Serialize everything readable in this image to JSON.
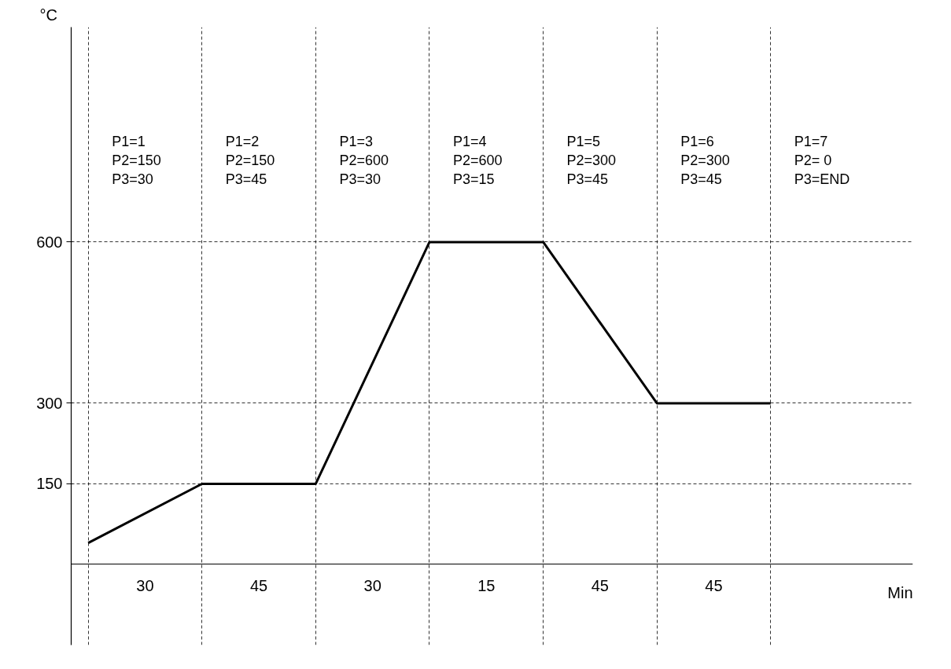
{
  "chart_data": {
    "type": "line",
    "xlabel": "Min",
    "ylabel": "°C",
    "categories": [
      null,
      null,
      null,
      null,
      null,
      null,
      null
    ],
    "values": [
      40,
      150,
      150,
      600,
      600,
      300,
      300
    ],
    "color": "#000000",
    "marker": "none",
    "line_style": "solid",
    "ylim": [
      -150,
      1000
    ],
    "yticks": [
      150,
      300,
      600
    ],
    "tick_labels": "y",
    "grid": true,
    "annotations": [
      "P1=1\nP2=150\nP3=30",
      "P1=2\nP2=150\nP3=45",
      "P1=3\nP2=600\nP3=30",
      "P1=4\nP2=600\nP3=15",
      "P1=5\nP2=300\nP3=45",
      "P1=6\nP2=300\nP3=45",
      "P1=7\nP2= 0\nP3=END",
      "30",
      "45",
      "30",
      "15",
      "45",
      "45"
    ]
  }
}
